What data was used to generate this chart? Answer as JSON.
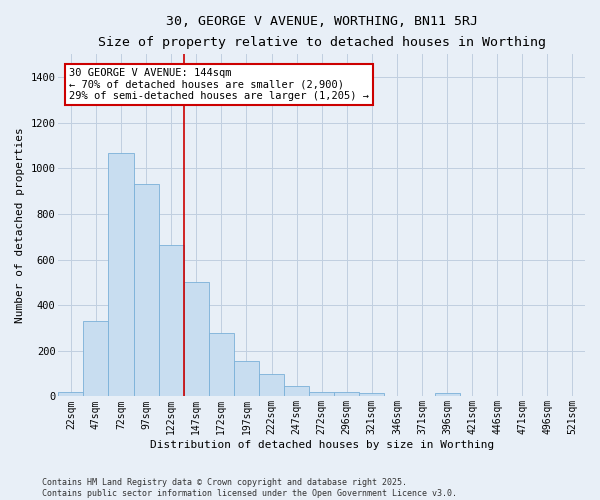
{
  "title": "30, GEORGE V AVENUE, WORTHING, BN11 5RJ",
  "subtitle": "Size of property relative to detached houses in Worthing",
  "xlabel": "Distribution of detached houses by size in Worthing",
  "ylabel": "Number of detached properties",
  "bar_color": "#c8ddf0",
  "bar_edge_color": "#7ab0d8",
  "categories": [
    "22sqm",
    "47sqm",
    "72sqm",
    "97sqm",
    "122sqm",
    "147sqm",
    "172sqm",
    "197sqm",
    "222sqm",
    "247sqm",
    "272sqm",
    "296sqm",
    "321sqm",
    "346sqm",
    "371sqm",
    "396sqm",
    "421sqm",
    "446sqm",
    "471sqm",
    "496sqm",
    "521sqm"
  ],
  "values": [
    18,
    330,
    1068,
    930,
    665,
    500,
    280,
    155,
    100,
    45,
    20,
    18,
    15,
    0,
    0,
    14,
    0,
    0,
    0,
    0,
    0
  ],
  "ylim": [
    0,
    1500
  ],
  "yticks": [
    0,
    200,
    400,
    600,
    800,
    1000,
    1200,
    1400
  ],
  "property_line_x": 4.5,
  "annotation_text": "30 GEORGE V AVENUE: 144sqm\n← 70% of detached houses are smaller (2,900)\n29% of semi-detached houses are larger (1,205) →",
  "annotation_box_facecolor": "#ffffff",
  "annotation_box_edge": "#cc0000",
  "annotation_line_color": "#cc0000",
  "footnote1": "Contains HM Land Registry data © Crown copyright and database right 2025.",
  "footnote2": "Contains public sector information licensed under the Open Government Licence v3.0.",
  "background_color": "#e8eff7",
  "grid_color": "#c0cfe0"
}
